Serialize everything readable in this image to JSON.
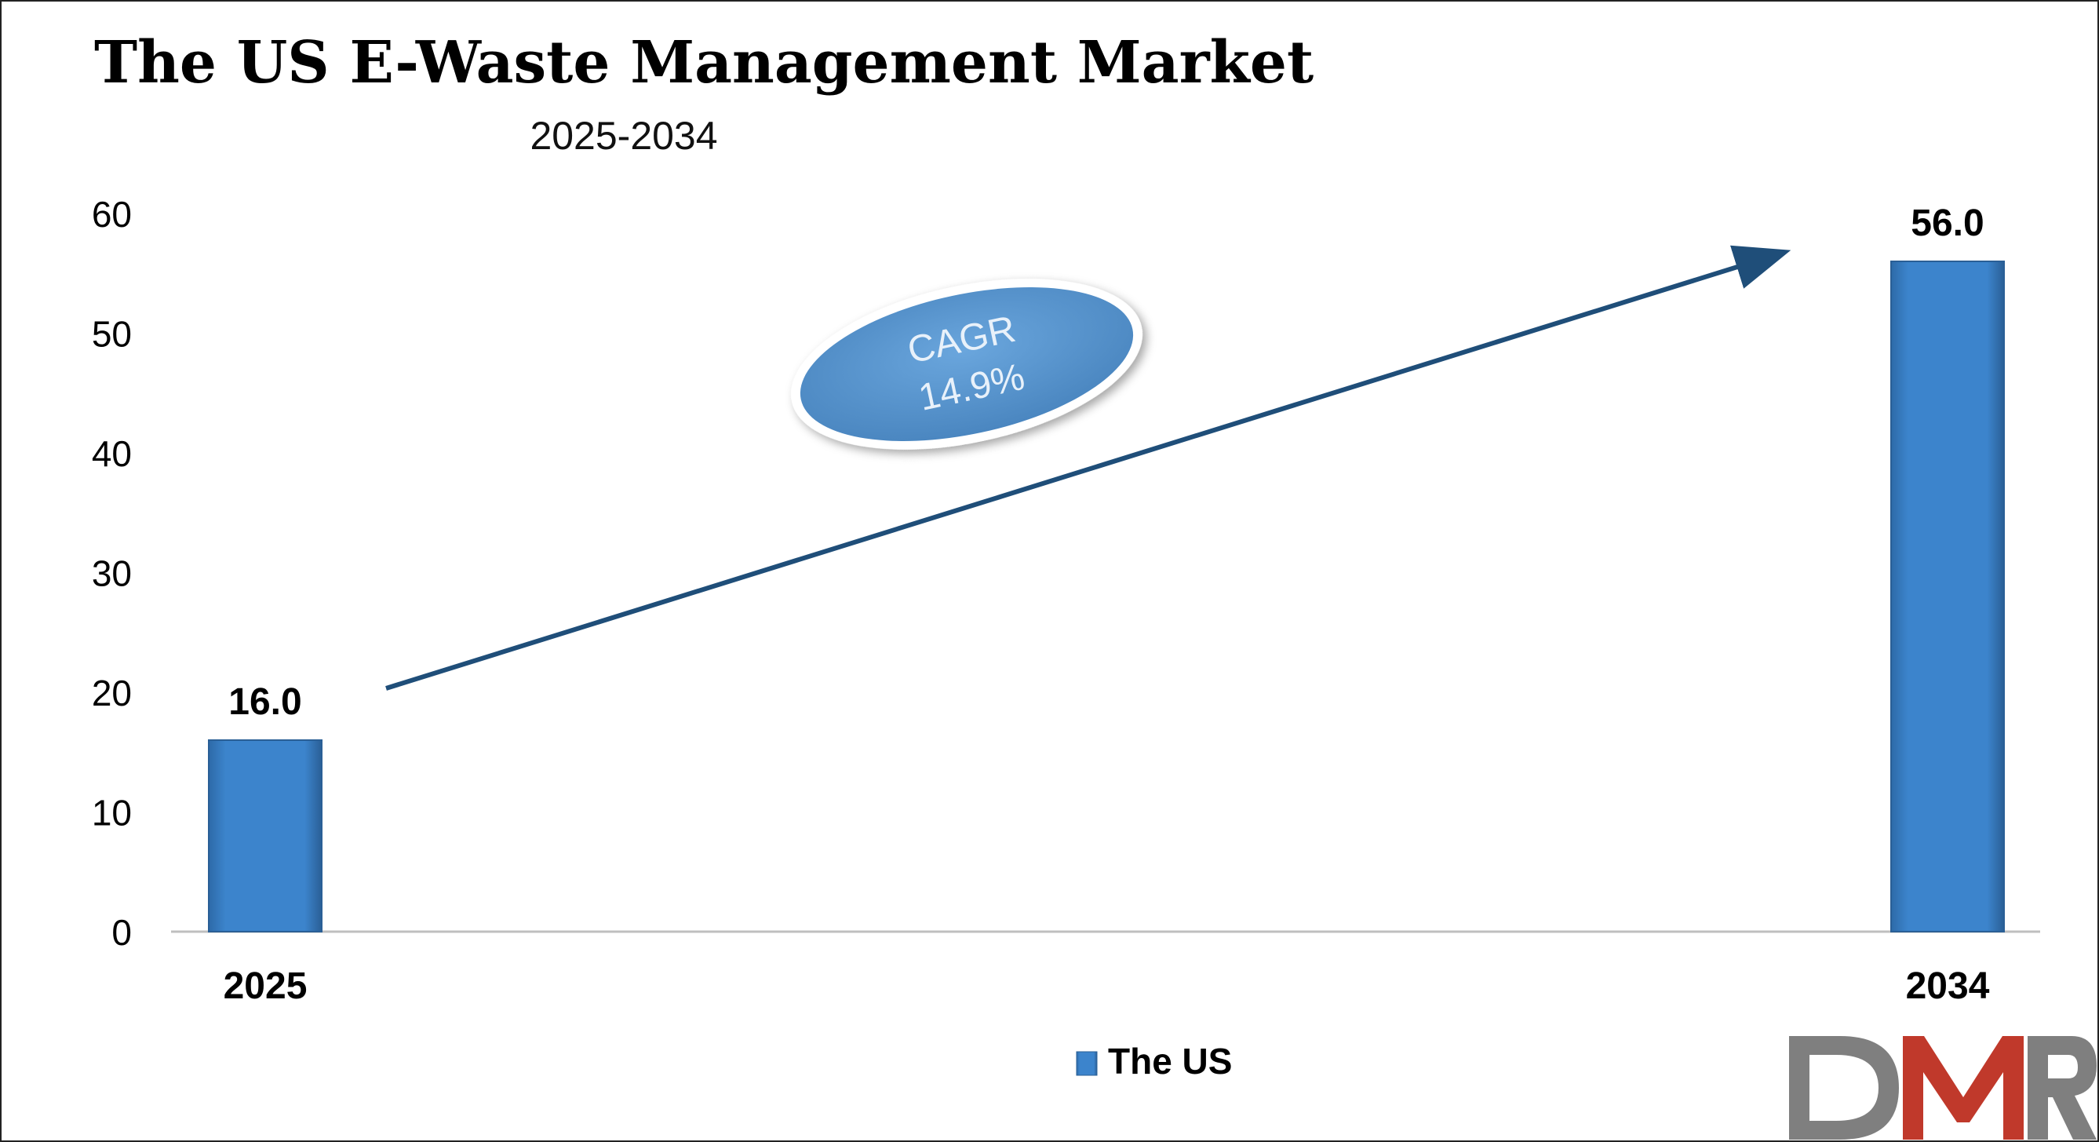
{
  "chart_data": {
    "type": "bar",
    "title": "The US E-Waste Management Market",
    "subtitle": "2025-2034",
    "categories": [
      "2025",
      "2034"
    ],
    "series": [
      {
        "name": "The US",
        "values": [
          16.0,
          56.0
        ],
        "labels": [
          "16.0",
          "56.0"
        ]
      }
    ],
    "ylim": [
      0,
      60
    ],
    "yticks": [
      0,
      10,
      20,
      30,
      40,
      50,
      60
    ],
    "grid": false,
    "legend": "bottom-center",
    "annotation": {
      "line1": "CAGR",
      "line2": "14.9%"
    },
    "colors": {
      "bar": "#3a80c6",
      "bar_dark": "#2a5f96",
      "arrow": "#1f4e79",
      "ellipse": "#5b9bd5"
    }
  },
  "logo": {
    "text": "DMR",
    "colors": {
      "D": "#7f7f7f",
      "M": "#c0392b",
      "R": "#7f7f7f"
    }
  }
}
